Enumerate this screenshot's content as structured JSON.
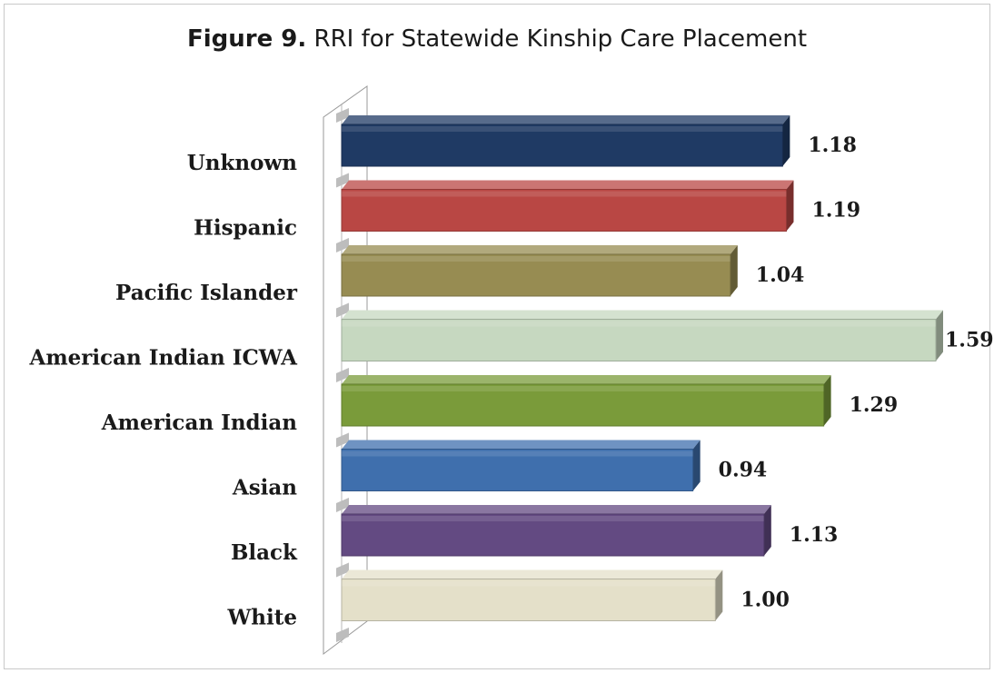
{
  "figure": {
    "label": "Figure 9.",
    "title": "RRI for Statewide Kinship Care Placement"
  },
  "chart_data": {
    "type": "bar",
    "orientation": "horizontal",
    "categories": [
      "Unknown",
      "Hispanic",
      "Pacific Islander",
      "American Indian ICWA",
      "American Indian",
      "Asian",
      "Black",
      "White"
    ],
    "values": [
      1.18,
      1.19,
      1.04,
      1.59,
      1.29,
      0.94,
      1.13,
      1.0
    ],
    "value_labels": [
      "1.18",
      "1.19",
      "1.04",
      "1.59",
      "1.29",
      "0.94",
      "1.13",
      "1.00"
    ],
    "colors": [
      "#1f3a64",
      "#b94744",
      "#978c52",
      "#c6d8c0",
      "#7a9b3a",
      "#3f6fad",
      "#634a82",
      "#e4e0c9"
    ],
    "xlim": [
      0,
      1.59
    ],
    "xlabel": "",
    "ylabel": "",
    "grid": false,
    "legend": "none"
  }
}
